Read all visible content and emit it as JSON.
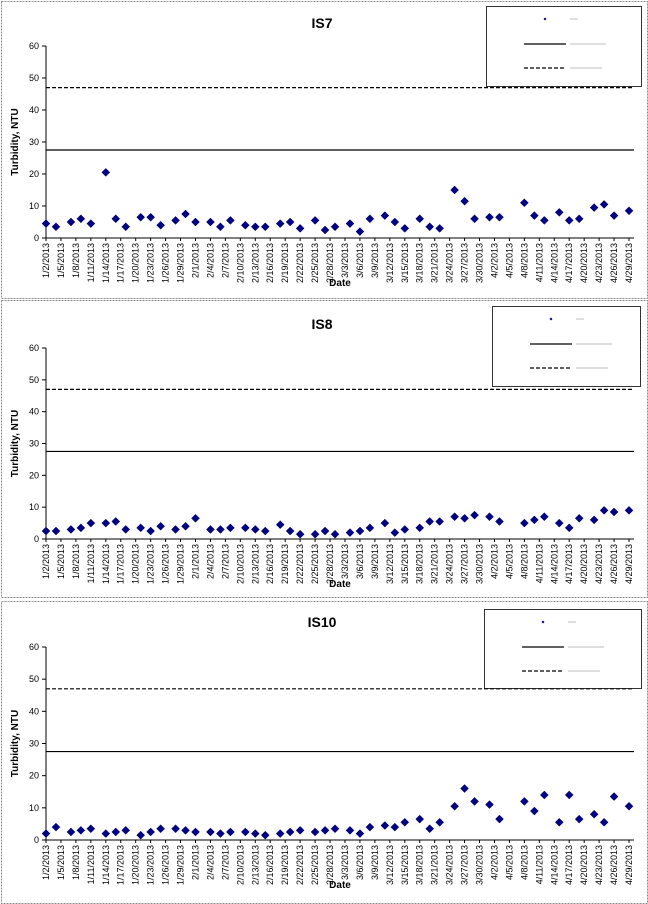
{
  "chart_data": [
    {
      "type": "scatter",
      "title": "IS7",
      "xlabel": "Date",
      "ylabel": "Turbidity, NTU",
      "ylim": [
        0,
        60
      ],
      "yticks": [
        0,
        10,
        20,
        30,
        40,
        50,
        60
      ],
      "xtick_labels": [
        "1/2/2013",
        "1/5/2013",
        "1/8/2013",
        "1/11/2013",
        "1/14/2013",
        "1/17/2013",
        "1/20/2013",
        "1/23/2013",
        "1/26/2013",
        "1/29/2013",
        "2/1/2013",
        "2/4/2013",
        "2/7/2013",
        "2/10/2013",
        "2/13/2013",
        "2/16/2013",
        "2/19/2013",
        "2/22/2013",
        "2/25/2013",
        "2/28/2013",
        "3/3/2013",
        "3/6/2013",
        "3/9/2013",
        "3/12/2013",
        "3/15/2013",
        "3/18/2013",
        "3/21/2013",
        "3/24/2013",
        "3/27/2013",
        "3/30/2013",
        "4/2/2013",
        "4/5/2013",
        "4/8/2013",
        "4/11/2013",
        "4/14/2013",
        "4/17/2013",
        "4/20/2013",
        "4/23/2013",
        "4/26/2013",
        "4/29/2013"
      ],
      "x_start": "2013-01-02",
      "x_end": "2013-04-30",
      "series": [
        {
          "marker": "diamond",
          "color": "#000080",
          "x": [
            "2013-01-02",
            "2013-01-04",
            "2013-01-07",
            "2013-01-09",
            "2013-01-11",
            "2013-01-14",
            "2013-01-16",
            "2013-01-18",
            "2013-01-21",
            "2013-01-23",
            "2013-01-25",
            "2013-01-28",
            "2013-01-30",
            "2013-02-01",
            "2013-02-04",
            "2013-02-06",
            "2013-02-08",
            "2013-02-11",
            "2013-02-13",
            "2013-02-15",
            "2013-02-18",
            "2013-02-20",
            "2013-02-22",
            "2013-02-25",
            "2013-02-27",
            "2013-03-01",
            "2013-03-04",
            "2013-03-06",
            "2013-03-08",
            "2013-03-11",
            "2013-03-13",
            "2013-03-15",
            "2013-03-18",
            "2013-03-20",
            "2013-03-22",
            "2013-03-25",
            "2013-03-27",
            "2013-03-29",
            "2013-04-01",
            "2013-04-03",
            "2013-04-08",
            "2013-04-10",
            "2013-04-12",
            "2013-04-15",
            "2013-04-17",
            "2013-04-19",
            "2013-04-22",
            "2013-04-24",
            "2013-04-26",
            "2013-04-29"
          ],
          "y": [
            4.5,
            3.5,
            5,
            6,
            4.5,
            20.5,
            6,
            3.5,
            6.5,
            6.5,
            4,
            5.5,
            7.5,
            5,
            5,
            3.5,
            5.5,
            4,
            3.5,
            3.5,
            4.5,
            5,
            3,
            5.5,
            2.5,
            3.5,
            4.5,
            2,
            6,
            7,
            5,
            3,
            6,
            3.5,
            3,
            15,
            11.5,
            6,
            6.5,
            6.5,
            11,
            7,
            5.5,
            8,
            5.5,
            6,
            9.5,
            10.5,
            7,
            8.5
          ]
        }
      ],
      "hlines": [
        {
          "y": 27.5,
          "style": "solid"
        },
        {
          "y": 47,
          "style": "dashed"
        }
      ],
      "legend": {
        "position": "top-right"
      }
    },
    {
      "type": "scatter",
      "title": "IS8",
      "xlabel": "Date",
      "ylabel": "Turbidity, NTU",
      "ylim": [
        0,
        60
      ],
      "yticks": [
        0,
        10,
        20,
        30,
        40,
        50,
        60
      ],
      "xtick_labels": [
        "1/2/2013",
        "1/5/2013",
        "1/8/2013",
        "1/11/2013",
        "1/14/2013",
        "1/17/2013",
        "1/20/2013",
        "1/23/2013",
        "1/26/2013",
        "1/29/2013",
        "2/1/2013",
        "2/4/2013",
        "2/7/2013",
        "2/10/2013",
        "2/13/2013",
        "2/16/2013",
        "2/19/2013",
        "2/22/2013",
        "2/25/2013",
        "2/28/2013",
        "3/3/2013",
        "3/6/2013",
        "3/9/2013",
        "3/12/2013",
        "3/15/2013",
        "3/18/2013",
        "3/21/2013",
        "3/24/2013",
        "3/27/2013",
        "3/30/2013",
        "4/2/2013",
        "4/5/2013",
        "4/8/2013",
        "4/11/2013",
        "4/14/2013",
        "4/17/2013",
        "4/20/2013",
        "4/23/2013",
        "4/26/2013",
        "4/29/2013"
      ],
      "x_start": "2013-01-02",
      "x_end": "2013-04-30",
      "series": [
        {
          "marker": "diamond",
          "color": "#000080",
          "x": [
            "2013-01-02",
            "2013-01-04",
            "2013-01-07",
            "2013-01-09",
            "2013-01-11",
            "2013-01-14",
            "2013-01-16",
            "2013-01-18",
            "2013-01-21",
            "2013-01-23",
            "2013-01-25",
            "2013-01-28",
            "2013-01-30",
            "2013-02-01",
            "2013-02-04",
            "2013-02-06",
            "2013-02-08",
            "2013-02-11",
            "2013-02-13",
            "2013-02-15",
            "2013-02-18",
            "2013-02-20",
            "2013-02-22",
            "2013-02-25",
            "2013-02-27",
            "2013-03-01",
            "2013-03-04",
            "2013-03-06",
            "2013-03-08",
            "2013-03-11",
            "2013-03-13",
            "2013-03-15",
            "2013-03-18",
            "2013-03-20",
            "2013-03-22",
            "2013-03-25",
            "2013-03-27",
            "2013-03-29",
            "2013-04-01",
            "2013-04-03",
            "2013-04-08",
            "2013-04-10",
            "2013-04-12",
            "2013-04-15",
            "2013-04-17",
            "2013-04-19",
            "2013-04-22",
            "2013-04-24",
            "2013-04-26",
            "2013-04-29"
          ],
          "y": [
            2.5,
            2.5,
            3,
            3.5,
            5,
            5,
            5.5,
            3,
            3.5,
            2.5,
            4,
            3,
            4,
            6.5,
            3,
            3,
            3.5,
            3.5,
            3,
            2.5,
            4.5,
            2.5,
            1.5,
            1.5,
            2.5,
            1.5,
            2,
            2.5,
            3.5,
            5,
            2,
            3,
            3.5,
            5.5,
            5.5,
            7,
            6.5,
            7.5,
            7,
            5.5,
            5,
            6,
            7,
            5,
            3.5,
            6.5,
            6,
            9,
            8.5,
            9
          ]
        }
      ],
      "hlines": [
        {
          "y": 27.5,
          "style": "solid"
        },
        {
          "y": 47,
          "style": "dashed"
        }
      ],
      "legend": {
        "position": "top-right"
      }
    },
    {
      "type": "scatter",
      "title": "IS10",
      "xlabel": "Date",
      "ylabel": "Turbidity, NTU",
      "ylim": [
        0,
        60
      ],
      "yticks": [
        0,
        10,
        20,
        30,
        40,
        50,
        60
      ],
      "xtick_labels": [
        "1/2/2013",
        "1/5/2013",
        "1/8/2013",
        "1/11/2013",
        "1/14/2013",
        "1/17/2013",
        "1/20/2013",
        "1/23/2013",
        "1/26/2013",
        "1/29/2013",
        "2/1/2013",
        "2/4/2013",
        "2/7/2013",
        "2/10/2013",
        "2/13/2013",
        "2/16/2013",
        "2/19/2013",
        "2/22/2013",
        "2/25/2013",
        "2/28/2013",
        "3/3/2013",
        "3/6/2013",
        "3/9/2013",
        "3/12/2013",
        "3/15/2013",
        "3/18/2013",
        "3/21/2013",
        "3/24/2013",
        "3/27/2013",
        "3/30/2013",
        "4/2/2013",
        "4/5/2013",
        "4/8/2013",
        "4/11/2013",
        "4/14/2013",
        "4/17/2013",
        "4/20/2013",
        "4/23/2013",
        "4/26/2013",
        "4/29/2013"
      ],
      "x_start": "2013-01-02",
      "x_end": "2013-04-30",
      "series": [
        {
          "marker": "diamond",
          "color": "#000080",
          "x": [
            "2013-01-02",
            "2013-01-04",
            "2013-01-07",
            "2013-01-09",
            "2013-01-11",
            "2013-01-14",
            "2013-01-16",
            "2013-01-18",
            "2013-01-21",
            "2013-01-23",
            "2013-01-25",
            "2013-01-28",
            "2013-01-30",
            "2013-02-01",
            "2013-02-04",
            "2013-02-06",
            "2013-02-08",
            "2013-02-11",
            "2013-02-13",
            "2013-02-15",
            "2013-02-18",
            "2013-02-20",
            "2013-02-22",
            "2013-02-25",
            "2013-02-27",
            "2013-03-01",
            "2013-03-04",
            "2013-03-06",
            "2013-03-08",
            "2013-03-11",
            "2013-03-13",
            "2013-03-15",
            "2013-03-18",
            "2013-03-20",
            "2013-03-22",
            "2013-03-25",
            "2013-03-27",
            "2013-03-29",
            "2013-04-01",
            "2013-04-03",
            "2013-04-08",
            "2013-04-10",
            "2013-04-12",
            "2013-04-15",
            "2013-04-17",
            "2013-04-19",
            "2013-04-22",
            "2013-04-24",
            "2013-04-26",
            "2013-04-29"
          ],
          "y": [
            2,
            4,
            2.5,
            3,
            3.5,
            2,
            2.5,
            3,
            1.5,
            2.5,
            3.5,
            3.5,
            3,
            2.5,
            2.5,
            2,
            2.5,
            2.5,
            2,
            1.5,
            2,
            2.5,
            3,
            2.5,
            3,
            3.5,
            3,
            2,
            4,
            4.5,
            4,
            5.5,
            6.5,
            3.5,
            5.5,
            10.5,
            16,
            12,
            11,
            6.5,
            12,
            9,
            14,
            5.5,
            14,
            6.5,
            8,
            5.5,
            13.5,
            10.5
          ]
        }
      ],
      "hlines": [
        {
          "y": 27.5,
          "style": "solid"
        },
        {
          "y": 47,
          "style": "dashed"
        }
      ],
      "legend": {
        "position": "top-right"
      }
    }
  ]
}
